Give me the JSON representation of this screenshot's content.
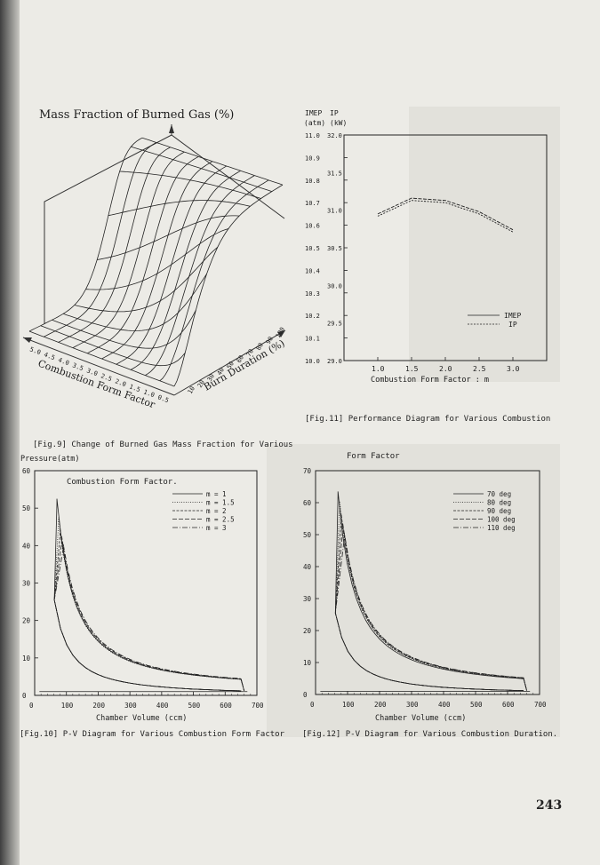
{
  "page_number": "243",
  "fig9": {
    "title": "Mass Fraction of Burned Gas (%)",
    "axis_x_label": "Combustion Form Factor",
    "axis_y_label": "Burn Duration (%)",
    "x_ticks": [
      "5.0",
      "4.5",
      "4.0",
      "3.5",
      "3.0",
      "2.5",
      "2.0",
      "1.5",
      "1.0",
      "0.5"
    ],
    "y_ticks": [
      "10",
      "20",
      "30",
      "40",
      "50",
      "60",
      "70",
      "80",
      "90",
      "100"
    ],
    "caption_line1": "[Fig.9] Change of Burned Gas Mass Fraction for Various",
    "caption_line2": "Combustion Form Factor."
  },
  "fig11": {
    "caption_line1": "[Fig.11] Performance Diagram for Various Combustion",
    "caption_line2": "Form Factor"
  },
  "fig10": {
    "caption": "[Fig.10] P-V Diagram for Various Combustion Form Factor"
  },
  "fig12": {
    "caption": "[Fig.12] P-V Diagram for Various Combustion Duration."
  },
  "chart_data": [
    {
      "id": "fig11",
      "type": "line",
      "ylabel_left": "IMEP (atm)",
      "ylabel_right": "IP (kW)",
      "xlabel": "Combustion Form Factor : m",
      "x_ticks": [
        "1.0",
        "1.5",
        "2.0",
        "2.5",
        "3.0"
      ],
      "y_ticks_left": [
        "10.0",
        "10.1",
        "10.2",
        "10.3",
        "10.4",
        "10.5",
        "10.6",
        "10.7",
        "10.8",
        "10.9",
        "11.0"
      ],
      "y_ticks_right": [
        "29.0",
        "29.5",
        "30.0",
        "30.5",
        "31.0",
        "31.5",
        "32.0"
      ],
      "xlim": [
        0.5,
        3.5
      ],
      "ylim_left": [
        10.0,
        11.0
      ],
      "series": [
        {
          "name": "IMEP",
          "x": [
            1.0,
            1.5,
            2.0,
            2.5,
            3.0
          ],
          "values": [
            10.65,
            10.72,
            10.71,
            10.66,
            10.58
          ]
        },
        {
          "name": "IP",
          "x": [
            1.0,
            1.5,
            2.0,
            2.5,
            3.0
          ],
          "values": [
            10.64,
            10.71,
            10.7,
            10.65,
            10.57
          ]
        }
      ],
      "legend_position": "bottom-right"
    },
    {
      "id": "fig10",
      "type": "line",
      "ylabel": "Pressure(atm)",
      "xlabel": "Chamber Volume (ccm)",
      "x_ticks": [
        "0",
        "100",
        "200",
        "300",
        "400",
        "500",
        "600",
        "700"
      ],
      "y_ticks": [
        "0",
        "10",
        "20",
        "30",
        "40",
        "50",
        "60"
      ],
      "xlim": [
        0,
        700
      ],
      "ylim": [
        0,
        60
      ],
      "series": [
        {
          "name": "m = 1",
          "peak": 51
        },
        {
          "name": "m = 1.5",
          "peak": 46
        },
        {
          "name": "m = 2",
          "peak": 43
        },
        {
          "name": "m = 2.5",
          "peak": 41
        },
        {
          "name": "m = 3",
          "peak": 39
        }
      ],
      "legend_position": "top-right"
    },
    {
      "id": "fig12",
      "type": "line",
      "xlabel": "Chamber Volume (ccm)",
      "x_ticks": [
        "0",
        "100",
        "200",
        "300",
        "400",
        "500",
        "600",
        "700"
      ],
      "y_ticks": [
        "0",
        "10",
        "20",
        "30",
        "40",
        "50",
        "60",
        "70"
      ],
      "xlim": [
        0,
        700
      ],
      "ylim": [
        0,
        70
      ],
      "series": [
        {
          "name": "70 deg",
          "peak": 62
        },
        {
          "name": "80 deg",
          "peak": 59
        },
        {
          "name": "90 deg",
          "peak": 55
        },
        {
          "name": "100 deg",
          "peak": 52
        },
        {
          "name": "110 deg",
          "peak": 49
        }
      ],
      "legend_position": "top-right"
    }
  ]
}
